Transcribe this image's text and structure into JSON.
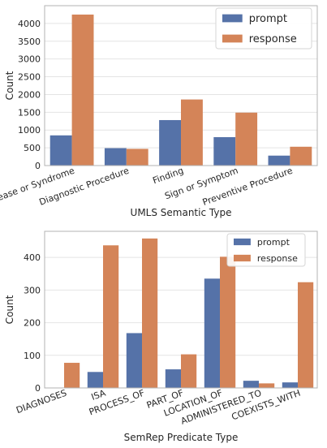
{
  "colors": {
    "prompt": "#5572a8",
    "response": "#d48458",
    "grid": "#e4e4e4",
    "frame": "#b3b3b3"
  },
  "chart_data": [
    {
      "type": "bar",
      "xlabel": "UMLS Semantic Type",
      "ylabel": "Count",
      "ylim": [
        0,
        4500
      ],
      "yticks": [
        0,
        500,
        1000,
        1500,
        2000,
        2500,
        3000,
        3500,
        4000
      ],
      "grid": true,
      "legend_position": "top-right",
      "categories": [
        "Disease or Syndrome",
        "Diagnostic Procedure",
        "Finding",
        "Sign or Symptom",
        "Preventive Procedure"
      ],
      "series": [
        {
          "name": "prompt",
          "values": [
            850,
            490,
            1280,
            800,
            280
          ]
        },
        {
          "name": "response",
          "values": [
            4250,
            470,
            1860,
            1490,
            530
          ]
        }
      ]
    },
    {
      "type": "bar",
      "xlabel": "SemRep Predicate Type",
      "ylabel": "Count",
      "ylim": [
        0,
        480
      ],
      "yticks": [
        0,
        100,
        200,
        300,
        400
      ],
      "grid": true,
      "legend_position": "top-right",
      "categories": [
        "DIAGNOSES",
        "ISA",
        "PROCESS_OF",
        "PART_OF",
        "LOCATION_OF",
        "ADMINISTERED_TO",
        "COEXISTS_WITH"
      ],
      "series": [
        {
          "name": "prompt",
          "values": [
            0,
            49,
            168,
            57,
            335,
            22,
            17
          ]
        },
        {
          "name": "response",
          "values": [
            77,
            437,
            458,
            103,
            402,
            14,
            324
          ]
        }
      ]
    }
  ]
}
